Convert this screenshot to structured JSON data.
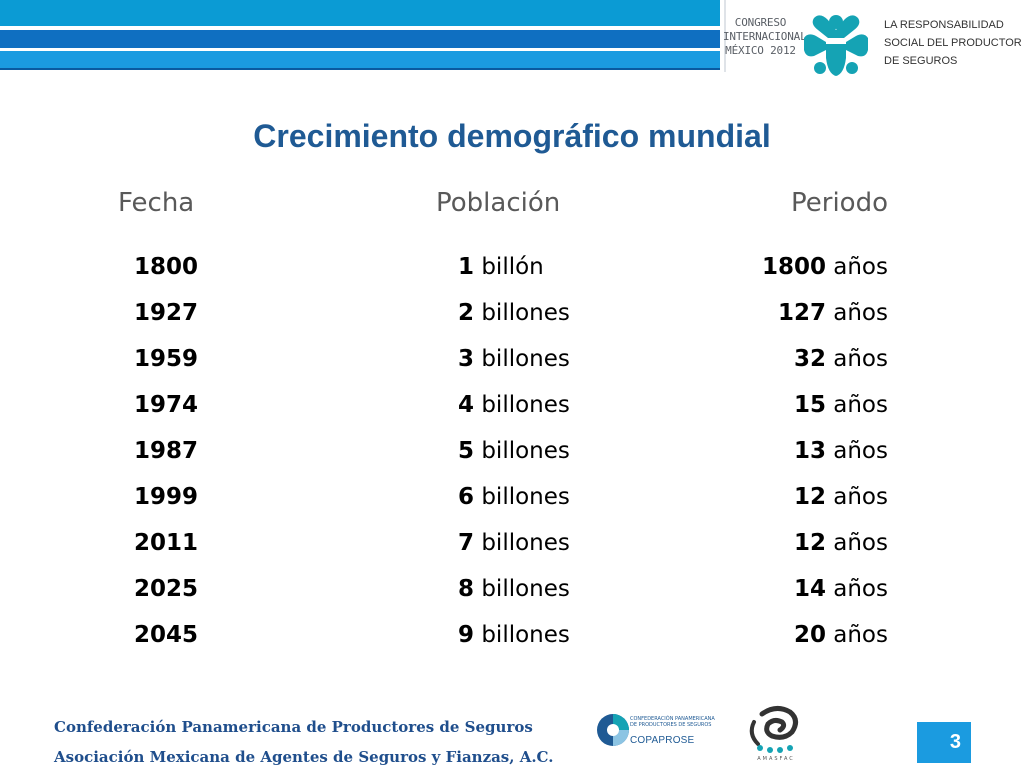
{
  "header": {
    "congreso_lines": [
      "CONGRESO",
      "INTERNACIONAL",
      "MÉXICO 2012"
    ],
    "tagline_lines": [
      "LA RESPONSABILIDAD",
      "SOCIAL DEL PRODUCTOR",
      "DE SEGUROS"
    ],
    "colors": {
      "band_light": "#0b9bd4",
      "band_dark": "#0f6fc1",
      "logo": "#15a3b4"
    }
  },
  "title": "Crecimiento demográfico mundial",
  "table": {
    "headers": {
      "fecha": "Fecha",
      "poblacion": "Población",
      "periodo": "Periodo"
    },
    "rows": [
      {
        "year": "1800",
        "pop_num": "1",
        "pop_unit": " billón",
        "per_num": "1800",
        "per_unit": " años"
      },
      {
        "year": "1927",
        "pop_num": "2",
        "pop_unit": " billones",
        "per_num": "127",
        "per_unit": " años"
      },
      {
        "year": "1959",
        "pop_num": "3",
        "pop_unit": " billones",
        "per_num": "32",
        "per_unit": " años"
      },
      {
        "year": "1974",
        "pop_num": "4",
        "pop_unit": " billones",
        "per_num": "15",
        "per_unit": " años"
      },
      {
        "year": "1987",
        "pop_num": "5",
        "pop_unit": " billones",
        "per_num": "13",
        "per_unit": " años"
      },
      {
        "year": "1999",
        "pop_num": "6",
        "pop_unit": " billones",
        "per_num": "12",
        "per_unit": " años"
      },
      {
        "year": "2011",
        "pop_num": "7",
        "pop_unit": " billones",
        "per_num": "12",
        "per_unit": " años"
      },
      {
        "year": "2025",
        "pop_num": "8",
        "pop_unit": " billones",
        "per_num": "14",
        "per_unit": " años"
      },
      {
        "year": "2045",
        "pop_num": "9",
        "pop_unit": " billones",
        "per_num": "20",
        "per_unit": " años"
      }
    ]
  },
  "footer": {
    "line1": "Confederación Panamericana de Productores de Seguros",
    "line2": "Asociación Mexicana de Agentes de Seguros y Fianzas, A.C.",
    "copaprose_small": "CONFEDERACIÓN PANAMERICANA DE PRODUCTORES DE SEGUROS",
    "copaprose_name": "COPAPROSE",
    "amasfac_name": "AMASFAC",
    "page_number": "3"
  }
}
